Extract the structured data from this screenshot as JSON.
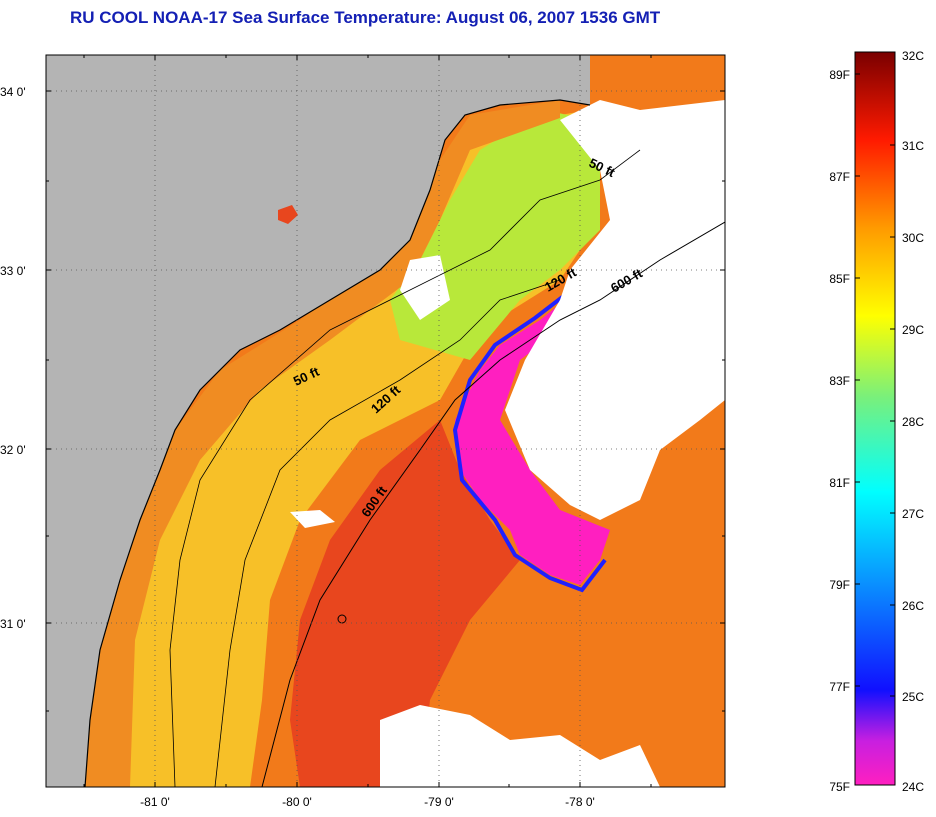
{
  "title": "RU COOL  NOAA-17  Sea Surface Temperature:  August 06, 2007 1536 GMT",
  "map": {
    "lat_labels": [
      "34 0'",
      "33 0'",
      "32 0'",
      "31 0'"
    ],
    "lon_labels": [
      "-81 0'",
      "-80 0'",
      "-79 0'",
      "-78 0'"
    ],
    "isobath_labels": [
      "50 ft",
      "50 ft",
      "120 ft",
      "120 ft",
      "600 ft",
      "600 ft"
    ],
    "colors": {
      "land": "#b4b4b4",
      "cloud": "#ffffff",
      "warm_water": "#f27a1a",
      "hot_water": "#e8461e",
      "nearshore": "#f08c22",
      "shelf": "#f7c028",
      "cool_shelf": "#b8e83a",
      "upwelling": "#ff1fc0"
    }
  },
  "colorbar": {
    "fahrenheit_labels": [
      "89F",
      "87F",
      "85F",
      "83F",
      "81F",
      "79F",
      "77F",
      "75F"
    ],
    "celsius_labels": [
      "32C",
      "31C",
      "30C",
      "29C",
      "28C",
      "27C",
      "26C",
      "25C",
      "24C"
    ]
  }
}
